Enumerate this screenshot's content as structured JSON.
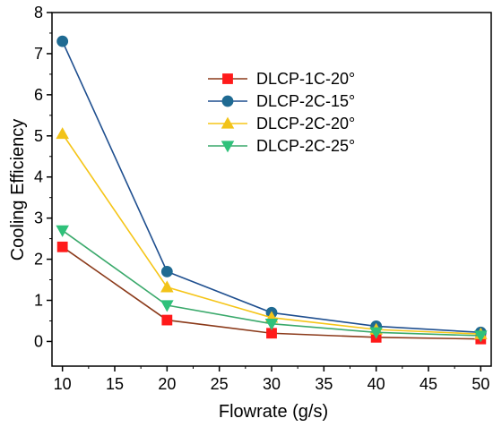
{
  "chart_data": {
    "type": "line",
    "xlabel": "Flowrate (g/s)",
    "ylabel": "Cooling Efficiency",
    "xlim": [
      9,
      51
    ],
    "ylim": [
      -0.6,
      8
    ],
    "xticks": [
      10,
      15,
      20,
      25,
      30,
      35,
      40,
      45,
      50
    ],
    "yticks": [
      0,
      1,
      2,
      3,
      4,
      5,
      6,
      7,
      8
    ],
    "x": [
      10,
      20,
      30,
      40,
      50
    ],
    "legend_position": "upper-right",
    "grid": false,
    "series": [
      {
        "name": "DLCP-1C-20°",
        "line_color": "#8b3a1a",
        "marker_color": "#ff1a1a",
        "marker": "square",
        "values": [
          2.3,
          0.52,
          0.2,
          0.1,
          0.06
        ]
      },
      {
        "name": "DLCP-2C-15°",
        "line_color": "#1f4f8f",
        "marker_color": "#1f6a92",
        "marker": "circle",
        "values": [
          7.3,
          1.7,
          0.7,
          0.37,
          0.22
        ]
      },
      {
        "name": "DLCP-2C-20°",
        "line_color": "#f5c518",
        "marker_color": "#f2c319",
        "marker": "triangle-up",
        "values": [
          5.05,
          1.32,
          0.58,
          0.29,
          0.18
        ]
      },
      {
        "name": "DLCP-2C-25°",
        "line_color": "#3aa96b",
        "marker_color": "#2fc17a",
        "marker": "triangle-down",
        "values": [
          2.7,
          0.88,
          0.43,
          0.22,
          0.14
        ]
      }
    ]
  }
}
